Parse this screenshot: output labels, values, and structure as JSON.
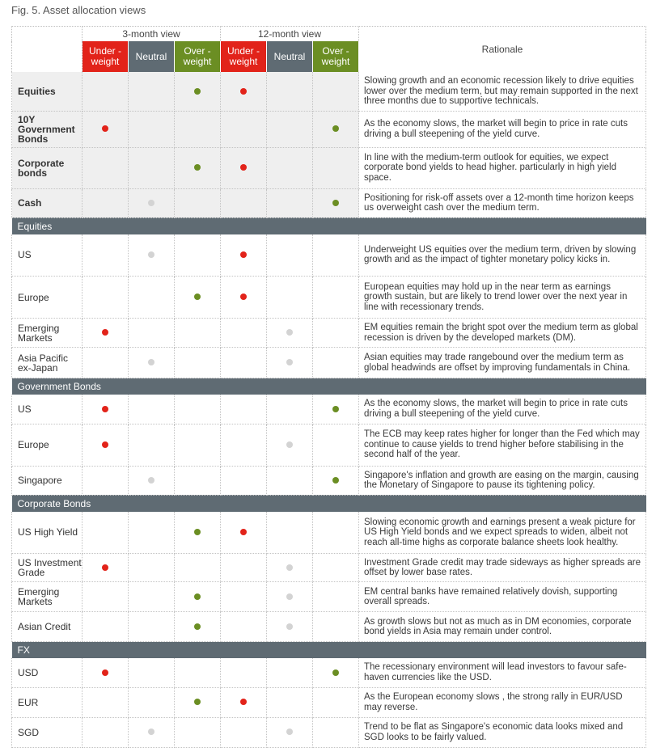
{
  "figure_title": "Fig. 5. Asset allocation views",
  "header": {
    "three_month": "3-month view",
    "twelve_month": "12-month view",
    "under": "Under -\nweight",
    "neutral": "Neutral",
    "over": "Over -\nweight",
    "rationale": "Rationale"
  },
  "colors": {
    "under": "#e2231a",
    "neutral": "#5f6b73",
    "over": "#6b8e23",
    "grey_dot": "#d3d3d3"
  },
  "summary": [
    {
      "label": "Equities",
      "three": "over",
      "twelve": "under",
      "rationale": "Slowing growth and an economic recession likely to drive equities lower over the medium term, but may remain supported in the next three months due to supportive technicals."
    },
    {
      "label": "10Y Government Bonds",
      "three": "under",
      "twelve": "over",
      "rationale": "As the economy slows, the market will begin to price in rate cuts driving a bull steepening of the yield curve."
    },
    {
      "label": "Corporate bonds",
      "three": "over",
      "twelve": "under",
      "rationale": "In line with the medium-term outlook for equities, we expect corporate bond yields to head higher. particularly in high yield space."
    },
    {
      "label": "Cash",
      "three": "neutral",
      "twelve": "over",
      "rationale": "Positioning for risk-off assets over a 12-month time horizon keeps us overweight cash over the medium term."
    }
  ],
  "sections": [
    {
      "title": "Equities",
      "rows": [
        {
          "label": "US",
          "three": "neutral",
          "twelve": "under",
          "rationale": "Underweight US equities over the medium term, driven by slowing growth and as the impact of tighter monetary policy kicks in."
        },
        {
          "label": "Europe",
          "three": "over",
          "twelve": "under",
          "rationale": "European equities may hold up in the near term as earnings growth sustain, but are likely to trend lower over the next year in line with recessionary trends."
        },
        {
          "label": "Emerging Markets",
          "three": "under",
          "twelve": "neutral",
          "rationale": "EM equities remain the bright spot over the medium term as global recession is driven by the developed markets (DM)."
        },
        {
          "label": "Asia Pacific ex-Japan",
          "three": "neutral",
          "twelve": "neutral",
          "rationale": "Asian equities may trade rangebound over the medium term as global headwinds are offset by improving fundamentals in China."
        }
      ]
    },
    {
      "title": "Government Bonds",
      "rows": [
        {
          "label": "US",
          "three": "under",
          "twelve": "over",
          "rationale": "As the economy slows, the market will begin to price in rate cuts driving a bull steepening of the yield curve."
        },
        {
          "label": "Europe",
          "three": "under",
          "twelve": "neutral",
          "rationale": "The ECB may keep rates higher for longer than the Fed which may continue to cause yields to trend higher before stabilising in the second half of the year."
        },
        {
          "label": "Singapore",
          "three": "neutral",
          "twelve": "over",
          "rationale": "Singapore's inflation and growth are easing on the margin, causing the Monetary of Singapore to pause its tightening policy."
        }
      ]
    },
    {
      "title": "Corporate Bonds",
      "rows": [
        {
          "label": "US High Yield",
          "three": "over",
          "twelve": "under",
          "rationale": "Slowing economic growth and earnings present a weak picture for US High Yield bonds and we expect spreads to widen, albeit not reach all-time highs as corporate balance sheets look healthy."
        },
        {
          "label": "US Investment Grade",
          "three": "under",
          "twelve": "neutral",
          "rationale": "Investment Grade credit may trade sideways as higher spreads are offset by lower base rates."
        },
        {
          "label": "Emerging Markets",
          "three": "over",
          "twelve": "neutral",
          "rationale": "EM central banks have remained relatively dovish, supporting overall spreads."
        },
        {
          "label": "Asian Credit",
          "three": "over",
          "twelve": "neutral",
          "rationale": "As growth slows but not as much as in DM economies, corporate bond yields in Asia may remain under control."
        }
      ]
    },
    {
      "title": "FX",
      "rows": [
        {
          "label": "USD",
          "three": "under",
          "twelve": "over",
          "rationale": "The recessionary environment will lead investors to favour safe-haven currencies like the USD."
        },
        {
          "label": "EUR",
          "three": "over",
          "twelve": "under",
          "rationale": "As the European economy slows , the strong rally in EUR/USD may reverse."
        },
        {
          "label": "SGD",
          "three": "neutral",
          "twelve": "neutral",
          "rationale": "Trend to be flat as Singapore's economic data looks mixed and SGD looks to be fairly valued."
        }
      ]
    }
  ]
}
